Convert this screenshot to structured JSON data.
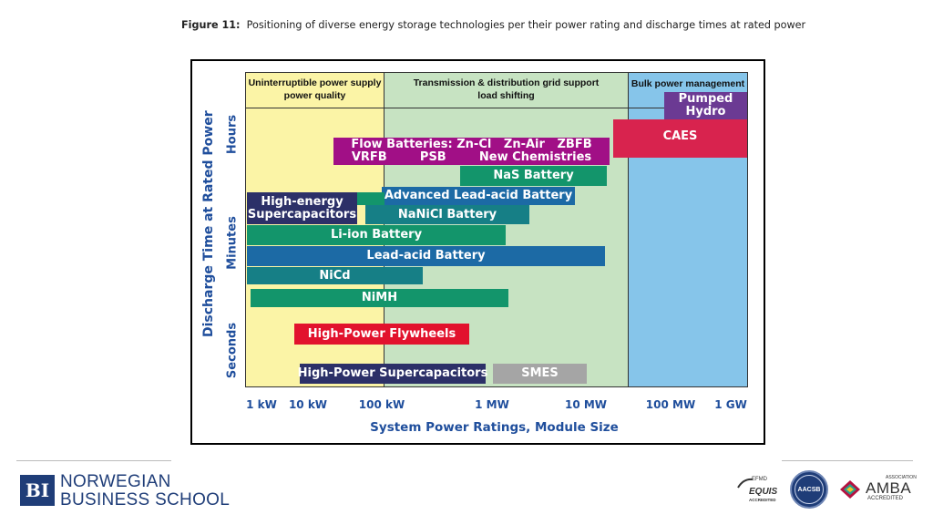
{
  "caption": {
    "label": "Figure 11:",
    "text": "Positioning of diverse energy storage technologies per their power rating and discharge times at rated power"
  },
  "zones": {
    "ups": {
      "line1": "Uninterruptible power supply",
      "line2": "power quality"
    },
    "tnd": {
      "line1": "Transmission & distribution grid support",
      "line2": "load shifting"
    },
    "bulk": {
      "line1": "Bulk power management"
    }
  },
  "bars": {
    "pumped1": "Pumped",
    "pumped2": "Hydro",
    "caes": "CAES",
    "flow1": "Flow Batteries: Zn-Cl   Zn-Air   ZBFB",
    "flow2": "VRFB        PSB        New Chemistries",
    "nas": "NaS Battery",
    "advla": "Advanced Lead-acid Battery",
    "hesc1": "High-energy",
    "hesc2": "Supercapacitors",
    "nanicl": "NaNiCl Battery",
    "liion": "Li-ion Battery",
    "leadacid": "Lead-acid Battery",
    "nicd": "NiCd",
    "nimh": "NiMH",
    "flywheel": "High-Power Flywheels",
    "hpsc": "High-Power Supercapacitors",
    "smes": "SMES"
  },
  "axis": {
    "y_title": "Discharge Time at Rated Power",
    "y_hours": "Hours",
    "y_minutes": "Minutes",
    "y_seconds": "Seconds",
    "x_title": "System Power Ratings, Module Size",
    "x_ticks": [
      "1 kW",
      "10 kW",
      "100 kW",
      "1 MW",
      "10 MW",
      "100 MW",
      "1 GW"
    ]
  },
  "footer": {
    "logo_letters": "BI",
    "school_line1": "NORWEGIAN",
    "school_line2": "BUSINESS SCHOOL",
    "efmd": "EFMD",
    "equis": "EQUIS",
    "equis_acc": "ACCREDITED",
    "aacsb": "AACSB",
    "amba_assoc": "ASSOCIATION",
    "amba": "AMBA",
    "amba_acc": "ACCREDITED"
  },
  "colors": {
    "ups_zone": "#fbf4a6",
    "tnd_zone": "#c7e3c2",
    "bulk_zone": "#86c5ea",
    "purple": "#a10f86",
    "violet": "#6b3a93",
    "crimson": "#d8234e",
    "green": "#13956b",
    "teal": "#167f86",
    "blue": "#1c6aa5",
    "navy": "#2c3068",
    "red": "#e2122d",
    "grey": "#a5a5a5",
    "axis_blue": "#1f4e9c"
  }
}
